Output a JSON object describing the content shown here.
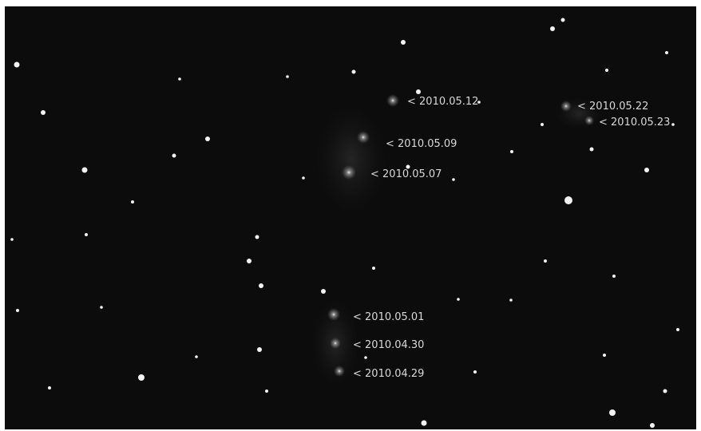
{
  "labels": {
    "d20100512": "< 2010.05.12",
    "d20100509": "< 2010.05.09",
    "d20100507": "< 2010.05.07",
    "d20100522": "< 2010.05.22",
    "d20100523": "< 2010.05.23",
    "d20100501": "< 2010.05.01",
    "d20100430": "< 2010.04.30",
    "d20100429": "< 2010.04.29"
  }
}
